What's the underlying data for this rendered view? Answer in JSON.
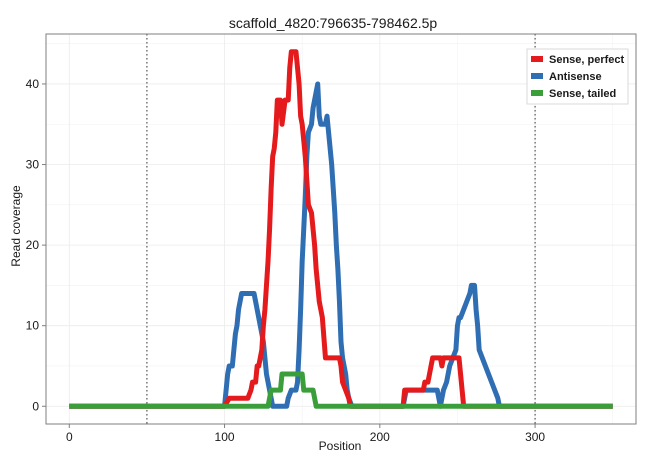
{
  "chart_data": {
    "type": "line",
    "title": "scaffold_4820:796635-798462.5p",
    "xlabel": "Position",
    "ylabel": "Read coverage",
    "xlim": [
      -15,
      365
    ],
    "ylim": [
      -2.2,
      46.2
    ],
    "x_ticks": [
      0,
      100,
      200,
      300
    ],
    "y_ticks": [
      0,
      10,
      20,
      30,
      40
    ],
    "x_minor_ticks": [
      50,
      150,
      250,
      350
    ],
    "y_minor_ticks": [
      5,
      15,
      25,
      35,
      45
    ],
    "vlines": [
      50,
      300
    ],
    "grid": true,
    "legend_position": "top-right",
    "series": [
      {
        "name": "Sense, perfect",
        "color": "#e41a1c",
        "points": [
          [
            0,
            0
          ],
          [
            100,
            0
          ],
          [
            103,
            1
          ],
          [
            115,
            1
          ],
          [
            117,
            2
          ],
          [
            118,
            3
          ],
          [
            120,
            3
          ],
          [
            121,
            5
          ],
          [
            122,
            5
          ],
          [
            123,
            6
          ],
          [
            124,
            7
          ],
          [
            125,
            10
          ],
          [
            126,
            12
          ],
          [
            127,
            15
          ],
          [
            128,
            18
          ],
          [
            129,
            22
          ],
          [
            130,
            27
          ],
          [
            131,
            31
          ],
          [
            132,
            32
          ],
          [
            133,
            34
          ],
          [
            134,
            38
          ],
          [
            136,
            38
          ],
          [
            137,
            35
          ],
          [
            139,
            38
          ],
          [
            141,
            38
          ],
          [
            142,
            42
          ],
          [
            143,
            44
          ],
          [
            146,
            44
          ],
          [
            147,
            42
          ],
          [
            148,
            40
          ],
          [
            149,
            36
          ],
          [
            150,
            35
          ],
          [
            151,
            33
          ],
          [
            152,
            31
          ],
          [
            153,
            28
          ],
          [
            154,
            25
          ],
          [
            156,
            24
          ],
          [
            157,
            22
          ],
          [
            158,
            20
          ],
          [
            159,
            17
          ],
          [
            160,
            15
          ],
          [
            161,
            13
          ],
          [
            163,
            11
          ],
          [
            165,
            6
          ],
          [
            174,
            6
          ],
          [
            175,
            5
          ],
          [
            176,
            3
          ],
          [
            178,
            2
          ],
          [
            180,
            1
          ],
          [
            181,
            0
          ],
          [
            215,
            0
          ],
          [
            216,
            2
          ],
          [
            228,
            2
          ],
          [
            229,
            3
          ],
          [
            231,
            3
          ],
          [
            232,
            4
          ],
          [
            233,
            5
          ],
          [
            234,
            6
          ],
          [
            239,
            6
          ],
          [
            240,
            5
          ],
          [
            241,
            6
          ],
          [
            251,
            6
          ],
          [
            252,
            4
          ],
          [
            253,
            2
          ],
          [
            254,
            0
          ],
          [
            350,
            0
          ]
        ]
      },
      {
        "name": "Antisense",
        "color": "#2f6eb3",
        "points": [
          [
            0,
            0
          ],
          [
            100,
            0
          ],
          [
            101,
            2
          ],
          [
            102,
            4
          ],
          [
            103,
            5
          ],
          [
            105,
            5
          ],
          [
            106,
            7
          ],
          [
            107,
            9
          ],
          [
            108,
            10
          ],
          [
            109,
            12
          ],
          [
            110,
            13
          ],
          [
            111,
            14
          ],
          [
            119,
            14
          ],
          [
            120,
            13
          ],
          [
            121,
            12
          ],
          [
            123,
            10
          ],
          [
            125,
            8
          ],
          [
            126,
            6
          ],
          [
            127,
            4
          ],
          [
            128,
            3
          ],
          [
            129,
            2
          ],
          [
            130,
            1
          ],
          [
            131,
            0
          ],
          [
            140,
            0
          ],
          [
            141,
            1
          ],
          [
            143,
            2
          ],
          [
            146,
            2
          ],
          [
            147,
            3
          ],
          [
            148,
            7
          ],
          [
            149,
            12
          ],
          [
            150,
            18
          ],
          [
            151,
            22
          ],
          [
            152,
            26
          ],
          [
            153,
            31
          ],
          [
            154,
            34
          ],
          [
            156,
            35
          ],
          [
            157,
            37
          ],
          [
            159,
            39
          ],
          [
            160,
            40
          ],
          [
            161,
            36
          ],
          [
            162,
            35
          ],
          [
            165,
            35
          ],
          [
            166,
            36
          ],
          [
            167,
            34
          ],
          [
            168,
            32
          ],
          [
            169,
            30
          ],
          [
            170,
            27
          ],
          [
            171,
            24
          ],
          [
            172,
            20
          ],
          [
            173,
            17
          ],
          [
            174,
            13
          ],
          [
            175,
            8
          ],
          [
            176,
            6
          ],
          [
            177,
            5
          ],
          [
            178,
            4
          ],
          [
            179,
            2
          ],
          [
            180,
            1
          ],
          [
            182,
            0
          ],
          [
            215,
            0
          ],
          [
            216,
            1
          ],
          [
            217,
            2
          ],
          [
            237,
            2
          ],
          [
            238,
            1
          ],
          [
            239,
            0
          ],
          [
            240,
            1
          ],
          [
            241,
            2
          ],
          [
            243,
            3
          ],
          [
            245,
            5
          ],
          [
            247,
            6
          ],
          [
            249,
            7
          ],
          [
            250,
            10
          ],
          [
            251,
            11
          ],
          [
            252,
            11
          ],
          [
            254,
            12
          ],
          [
            256,
            13
          ],
          [
            258,
            14
          ],
          [
            259,
            15
          ],
          [
            261,
            15
          ],
          [
            262,
            12
          ],
          [
            263,
            10
          ],
          [
            264,
            7
          ],
          [
            266,
            6
          ],
          [
            268,
            5
          ],
          [
            270,
            4
          ],
          [
            272,
            3
          ],
          [
            274,
            2
          ],
          [
            276,
            1
          ],
          [
            277,
            0
          ],
          [
            350,
            0
          ]
        ]
      },
      {
        "name": "Sense, tailed",
        "color": "#3a9f3a",
        "points": [
          [
            0,
            0
          ],
          [
            128,
            0
          ],
          [
            129,
            1
          ],
          [
            130,
            2
          ],
          [
            136,
            2
          ],
          [
            137,
            4
          ],
          [
            150,
            4
          ],
          [
            151,
            2
          ],
          [
            157,
            2
          ],
          [
            158,
            1
          ],
          [
            159,
            0
          ],
          [
            350,
            0
          ]
        ]
      }
    ]
  }
}
